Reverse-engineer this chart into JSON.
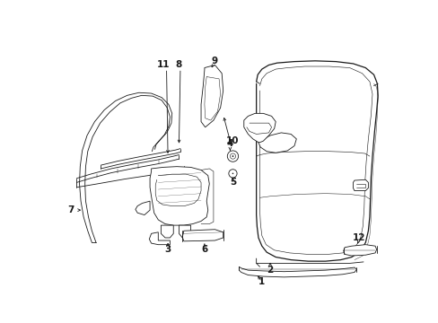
{
  "background_color": "#ffffff",
  "line_color": "#1a1a1a",
  "figsize": [
    4.89,
    3.6
  ],
  "dpi": 100,
  "lw": 0.9,
  "tlw": 0.6
}
